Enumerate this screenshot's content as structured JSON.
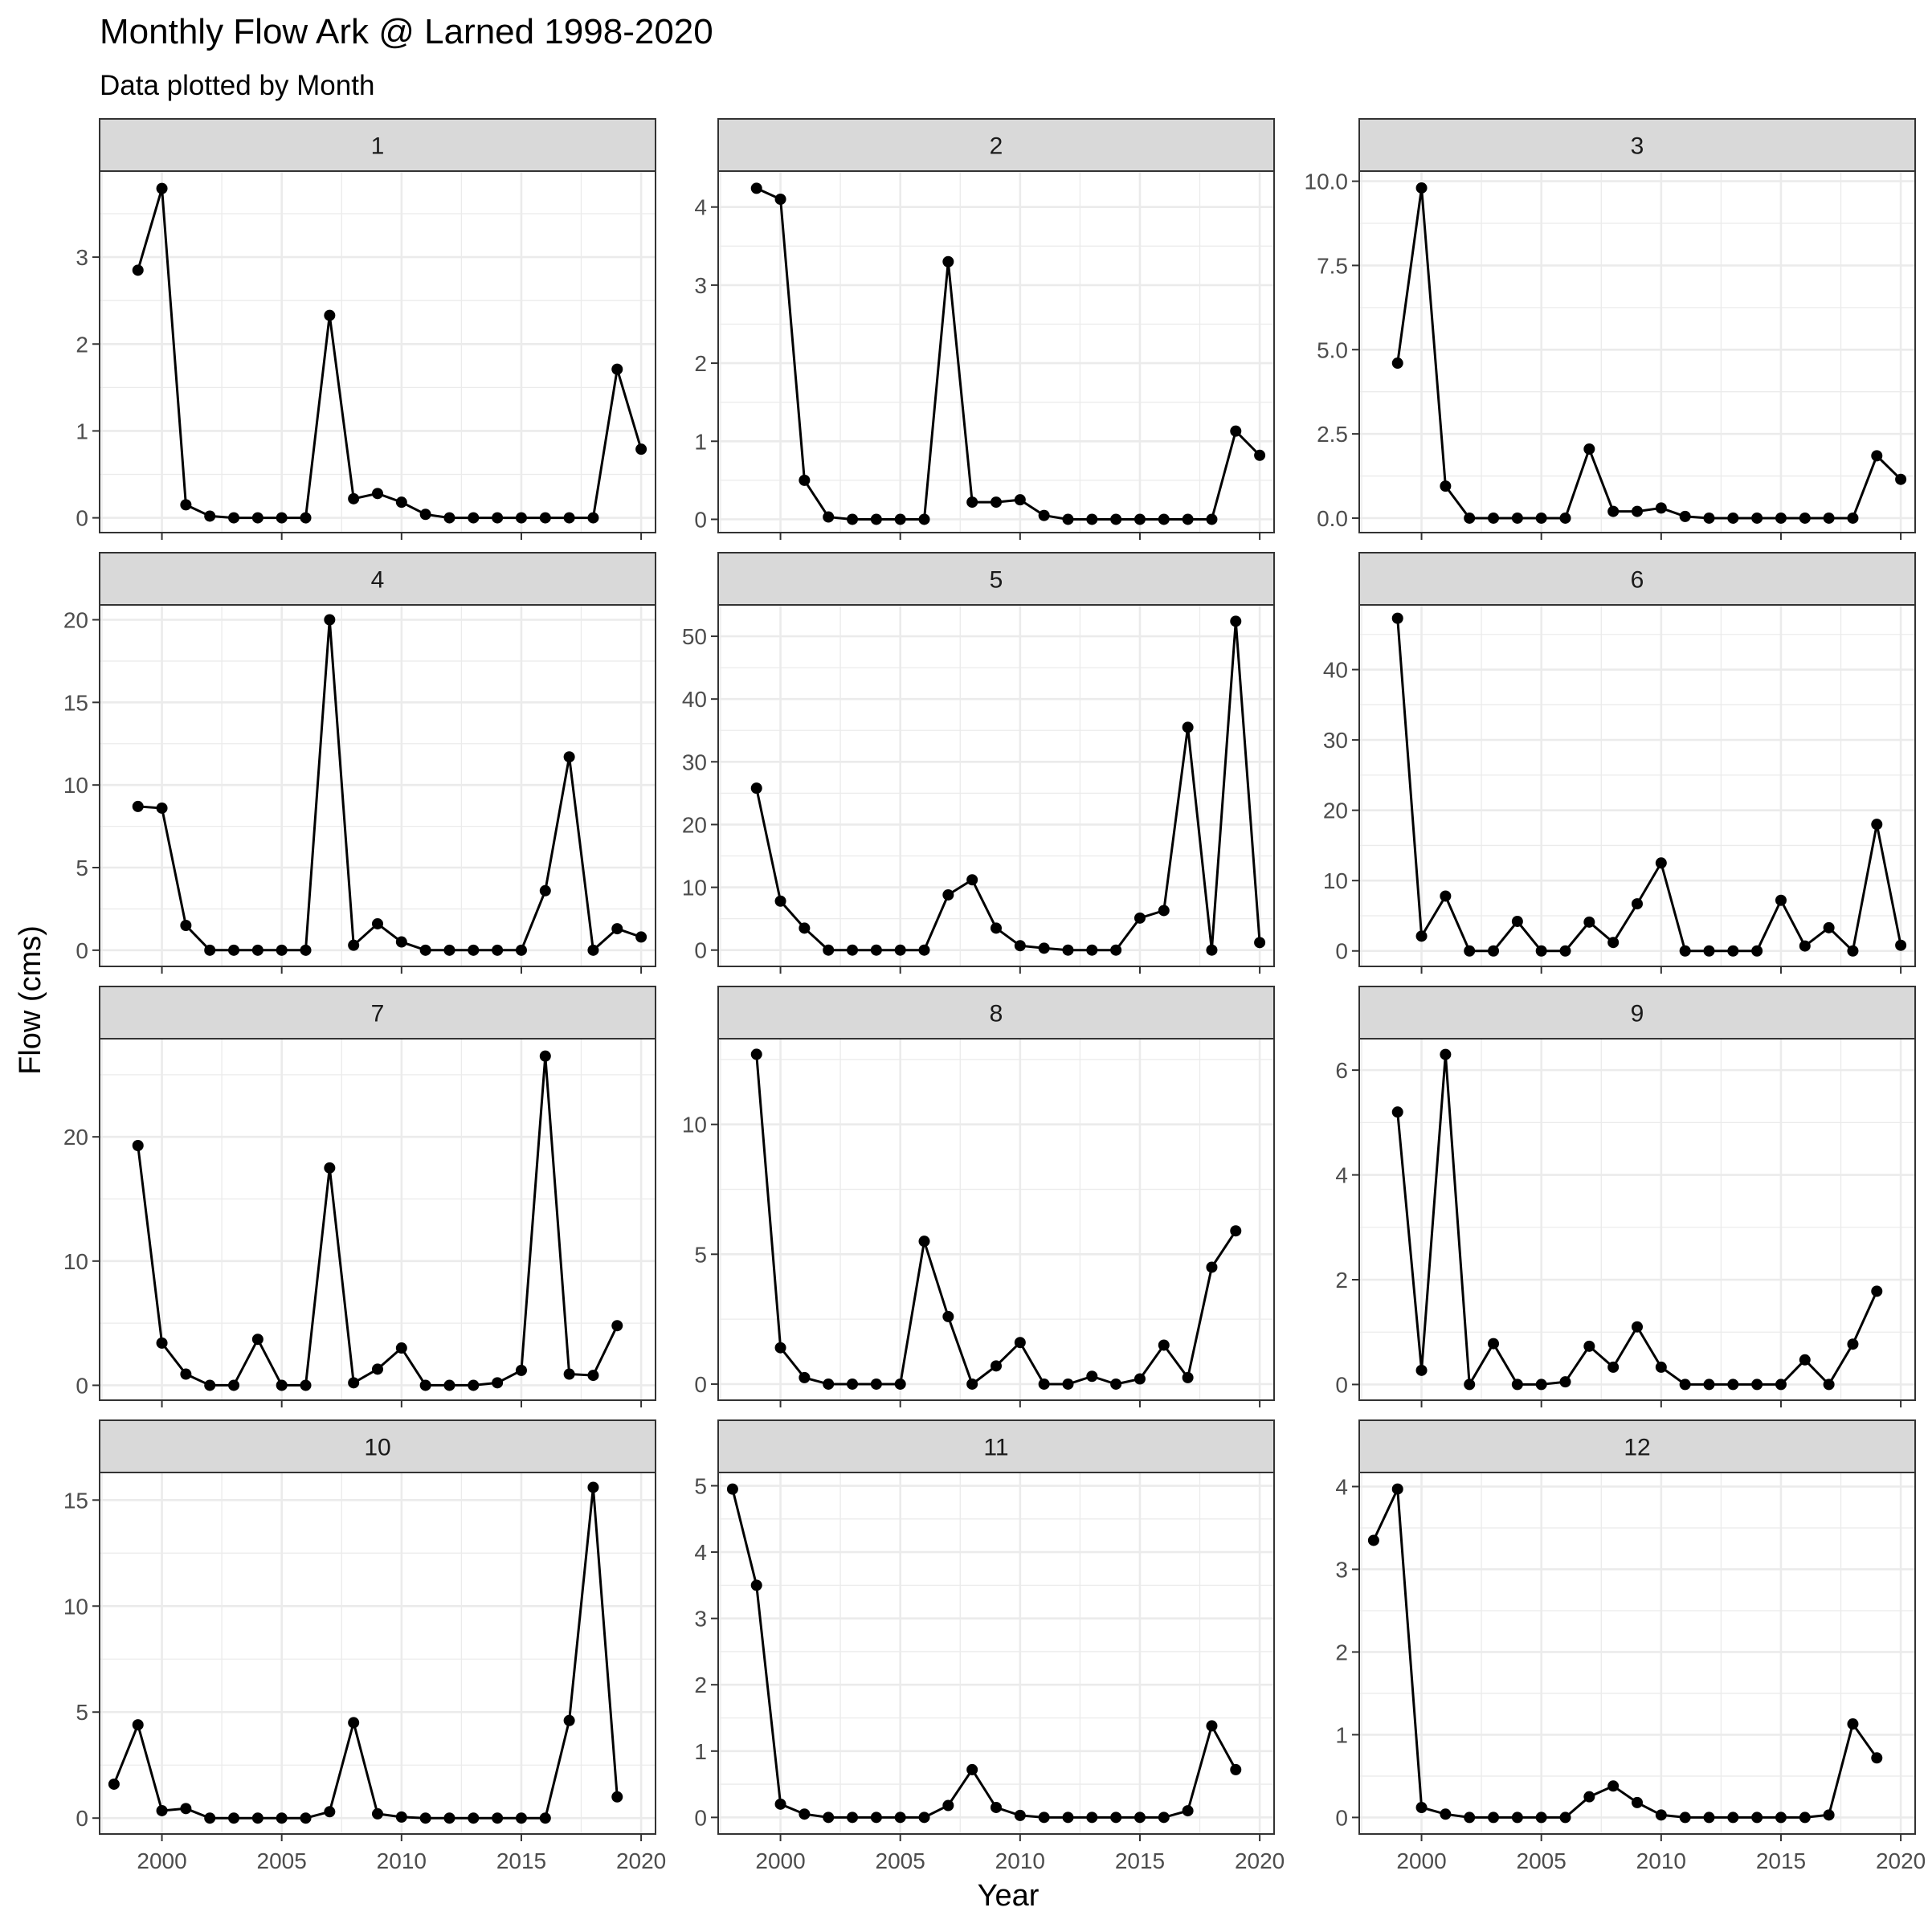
{
  "title": "Monthly Flow Ark @ Larned 1998-2020",
  "subtitle": "Data plotted by Month",
  "xlabel": "Year",
  "ylabel": "Flow (cms)",
  "colors": {
    "strip_fill": "#D9D9D9",
    "grid": "#EBEBEB",
    "series": "#000000",
    "text": "#1A1A1A",
    "tick_text": "#4D4D4D"
  },
  "chart_data": {
    "type": "line",
    "x_range": [
      1997.4,
      2020.6
    ],
    "x_ticks": [
      2000,
      2005,
      2010,
      2015,
      2020
    ],
    "x_tick_labels": [
      "2000",
      "2005",
      "2010",
      "2015",
      "2020"
    ],
    "grid": true,
    "panels": [
      {
        "label": "1",
        "ylim": [
          -0.17,
          3.99
        ],
        "y_ticks": [
          0,
          1,
          2,
          3
        ],
        "y_tick_labels": [
          "0",
          "1",
          "2",
          "3"
        ],
        "x": [
          1999,
          2000,
          2001,
          2002,
          2003,
          2004,
          2005,
          2006,
          2007,
          2008,
          2009,
          2010,
          2011,
          2012,
          2013,
          2014,
          2015,
          2016,
          2017,
          2018,
          2019,
          2020
        ],
        "values": [
          2.85,
          3.79,
          0.15,
          0.02,
          0,
          0,
          0,
          0,
          2.33,
          0.22,
          0.28,
          0.18,
          0.04,
          0,
          0,
          0,
          0,
          0,
          0,
          0,
          1.71,
          0.79
        ]
      },
      {
        "label": "2",
        "ylim": [
          -0.17,
          4.46
        ],
        "y_ticks": [
          0,
          1,
          2,
          3,
          4
        ],
        "y_tick_labels": [
          "0",
          "1",
          "2",
          "3",
          "4"
        ],
        "x": [
          1999,
          2000,
          2001,
          2002,
          2003,
          2004,
          2005,
          2006,
          2007,
          2008,
          2009,
          2010,
          2011,
          2012,
          2013,
          2014,
          2015,
          2016,
          2017,
          2018,
          2019,
          2020
        ],
        "values": [
          4.24,
          4.1,
          0.5,
          0.03,
          0,
          0,
          0,
          0,
          3.3,
          0.22,
          0.22,
          0.25,
          0.05,
          0,
          0,
          0,
          0,
          0,
          0,
          0,
          1.13,
          0.82
        ]
      },
      {
        "label": "3",
        "ylim": [
          -0.43,
          10.3
        ],
        "y_ticks": [
          0,
          2.5,
          5,
          7.5,
          10
        ],
        "y_tick_labels": [
          "0.0",
          "2.5",
          "5.0",
          "7.5",
          "10.0"
        ],
        "x": [
          1999,
          2000,
          2001,
          2002,
          2003,
          2004,
          2005,
          2006,
          2007,
          2008,
          2009,
          2010,
          2011,
          2012,
          2013,
          2014,
          2015,
          2016,
          2017,
          2018,
          2019,
          2020
        ],
        "values": [
          4.6,
          9.8,
          0.95,
          0,
          0,
          0,
          0,
          0,
          2.05,
          0.2,
          0.2,
          0.3,
          0.05,
          0,
          0,
          0,
          0,
          0,
          0,
          0,
          1.85,
          1.15
        ]
      },
      {
        "label": "4",
        "ylim": [
          -0.98,
          20.9
        ],
        "y_ticks": [
          0,
          5,
          10,
          15,
          20
        ],
        "y_tick_labels": [
          "0",
          "5",
          "10",
          "15",
          "20"
        ],
        "x": [
          1999,
          2000,
          2001,
          2002,
          2003,
          2004,
          2005,
          2006,
          2007,
          2008,
          2009,
          2010,
          2011,
          2012,
          2013,
          2014,
          2015,
          2016,
          2017,
          2018,
          2019,
          2020
        ],
        "values": [
          8.7,
          8.6,
          1.5,
          0,
          0,
          0,
          0,
          0,
          20,
          0.3,
          1.6,
          0.5,
          0,
          0,
          0,
          0,
          0,
          3.6,
          11.7,
          0,
          1.3,
          0.8
        ]
      },
      {
        "label": "5",
        "ylim": [
          -2.6,
          55.0
        ],
        "y_ticks": [
          0,
          10,
          20,
          30,
          40,
          50
        ],
        "y_tick_labels": [
          "0",
          "10",
          "20",
          "30",
          "40",
          "50"
        ],
        "x": [
          1999,
          2000,
          2001,
          2002,
          2003,
          2004,
          2005,
          2006,
          2007,
          2008,
          2009,
          2010,
          2011,
          2012,
          2013,
          2014,
          2015,
          2016,
          2017,
          2018,
          2019,
          2020
        ],
        "values": [
          25.8,
          7.8,
          3.5,
          0,
          0,
          0,
          0,
          0,
          8.8,
          11.2,
          3.5,
          0.7,
          0.3,
          0,
          0,
          0,
          5.1,
          6.3,
          35.5,
          0,
          52.4,
          1.2
        ]
      },
      {
        "label": "6",
        "ylim": [
          -2.2,
          49.2
        ],
        "y_ticks": [
          0,
          10,
          20,
          30,
          40
        ],
        "y_tick_labels": [
          "0",
          "10",
          "20",
          "30",
          "40"
        ],
        "x": [
          1999,
          2000,
          2001,
          2002,
          2003,
          2004,
          2005,
          2006,
          2007,
          2008,
          2009,
          2010,
          2011,
          2012,
          2013,
          2014,
          2015,
          2016,
          2017,
          2018,
          2019,
          2020
        ],
        "values": [
          47.3,
          2.1,
          7.8,
          0,
          0,
          4.2,
          0,
          0,
          4.1,
          1.2,
          6.7,
          12.5,
          0,
          0,
          0,
          0,
          7.2,
          0.7,
          3.3,
          0,
          18,
          0.8
        ]
      },
      {
        "label": "7",
        "ylim": [
          -1.2,
          27.9
        ],
        "y_ticks": [
          0,
          10,
          20
        ],
        "y_tick_labels": [
          "0",
          "10",
          "20"
        ],
        "x": [
          1999,
          2000,
          2001,
          2002,
          2003,
          2004,
          2005,
          2006,
          2007,
          2008,
          2009,
          2010,
          2011,
          2012,
          2013,
          2014,
          2015,
          2016,
          2017,
          2018,
          2019
        ],
        "values": [
          19.3,
          3.4,
          0.9,
          0,
          0,
          3.7,
          0,
          0,
          17.5,
          0.2,
          1.3,
          3,
          0,
          0,
          0,
          0.2,
          1.2,
          26.5,
          0.9,
          0.8,
          4.8
        ]
      },
      {
        "label": "8",
        "ylim": [
          -0.62,
          13.3
        ],
        "y_ticks": [
          0,
          5,
          10
        ],
        "y_tick_labels": [
          "0",
          "5",
          "10"
        ],
        "x": [
          1999,
          2000,
          2001,
          2002,
          2003,
          2004,
          2005,
          2006,
          2007,
          2008,
          2009,
          2010,
          2011,
          2012,
          2013,
          2014,
          2015,
          2016,
          2017,
          2018,
          2019
        ],
        "values": [
          12.7,
          1.4,
          0.25,
          0,
          0,
          0,
          0,
          5.5,
          2.6,
          0,
          0.7,
          1.6,
          0,
          0,
          0.3,
          0,
          0.2,
          1.5,
          0.25,
          4.5,
          5.9
        ]
      },
      {
        "label": "9",
        "ylim": [
          -0.3,
          6.6
        ],
        "y_ticks": [
          0,
          2,
          4,
          6
        ],
        "y_tick_labels": [
          "0",
          "2",
          "4",
          "6"
        ],
        "x": [
          1999,
          2000,
          2001,
          2002,
          2003,
          2004,
          2005,
          2006,
          2007,
          2008,
          2009,
          2010,
          2011,
          2012,
          2013,
          2014,
          2015,
          2016,
          2017,
          2018,
          2019
        ],
        "values": [
          5.2,
          0.27,
          6.3,
          0,
          0.78,
          0,
          0,
          0.05,
          0.73,
          0.33,
          1.1,
          0.33,
          0,
          0,
          0,
          0,
          0,
          0.47,
          0,
          0.77,
          1.78
        ]
      },
      {
        "label": "10",
        "ylim": [
          -0.75,
          16.3
        ],
        "y_ticks": [
          0,
          5,
          10,
          15
        ],
        "y_tick_labels": [
          "0",
          "5",
          "10",
          "15"
        ],
        "x": [
          1998,
          1999,
          2000,
          2001,
          2002,
          2003,
          2004,
          2005,
          2006,
          2007,
          2008,
          2009,
          2010,
          2011,
          2012,
          2013,
          2014,
          2015,
          2016,
          2017,
          2018,
          2019
        ],
        "values": [
          1.6,
          4.4,
          0.35,
          0.45,
          0,
          0,
          0,
          0,
          0,
          0.3,
          4.5,
          0.2,
          0.05,
          0,
          0,
          0,
          0,
          0,
          0,
          4.6,
          15.6,
          1
        ]
      },
      {
        "label": "11",
        "ylim": [
          -0.25,
          5.2
        ],
        "y_ticks": [
          0,
          1,
          2,
          3,
          4,
          5
        ],
        "y_tick_labels": [
          "0",
          "1",
          "2",
          "3",
          "4",
          "5"
        ],
        "x": [
          1998,
          1999,
          2000,
          2001,
          2002,
          2003,
          2004,
          2005,
          2006,
          2007,
          2008,
          2009,
          2010,
          2011,
          2012,
          2013,
          2014,
          2015,
          2016,
          2017,
          2018,
          2019
        ],
        "values": [
          4.95,
          3.5,
          0.2,
          0.05,
          0,
          0,
          0,
          0,
          0,
          0.18,
          0.72,
          0.15,
          0.03,
          0,
          0,
          0,
          0,
          0,
          0,
          0.1,
          1.38,
          0.72
        ]
      },
      {
        "label": "12",
        "ylim": [
          -0.2,
          4.17
        ],
        "y_ticks": [
          0,
          1,
          2,
          3,
          4
        ],
        "y_tick_labels": [
          "0",
          "1",
          "2",
          "3",
          "4"
        ],
        "x": [
          1998,
          1999,
          2000,
          2001,
          2002,
          2003,
          2004,
          2005,
          2006,
          2007,
          2008,
          2009,
          2010,
          2011,
          2012,
          2013,
          2014,
          2015,
          2016,
          2017,
          2018,
          2019
        ],
        "values": [
          3.35,
          3.97,
          0.12,
          0.04,
          0,
          0,
          0,
          0,
          0,
          0.25,
          0.38,
          0.18,
          0.03,
          0,
          0,
          0,
          0,
          0,
          0,
          0.03,
          1.13,
          0.72
        ]
      }
    ]
  }
}
